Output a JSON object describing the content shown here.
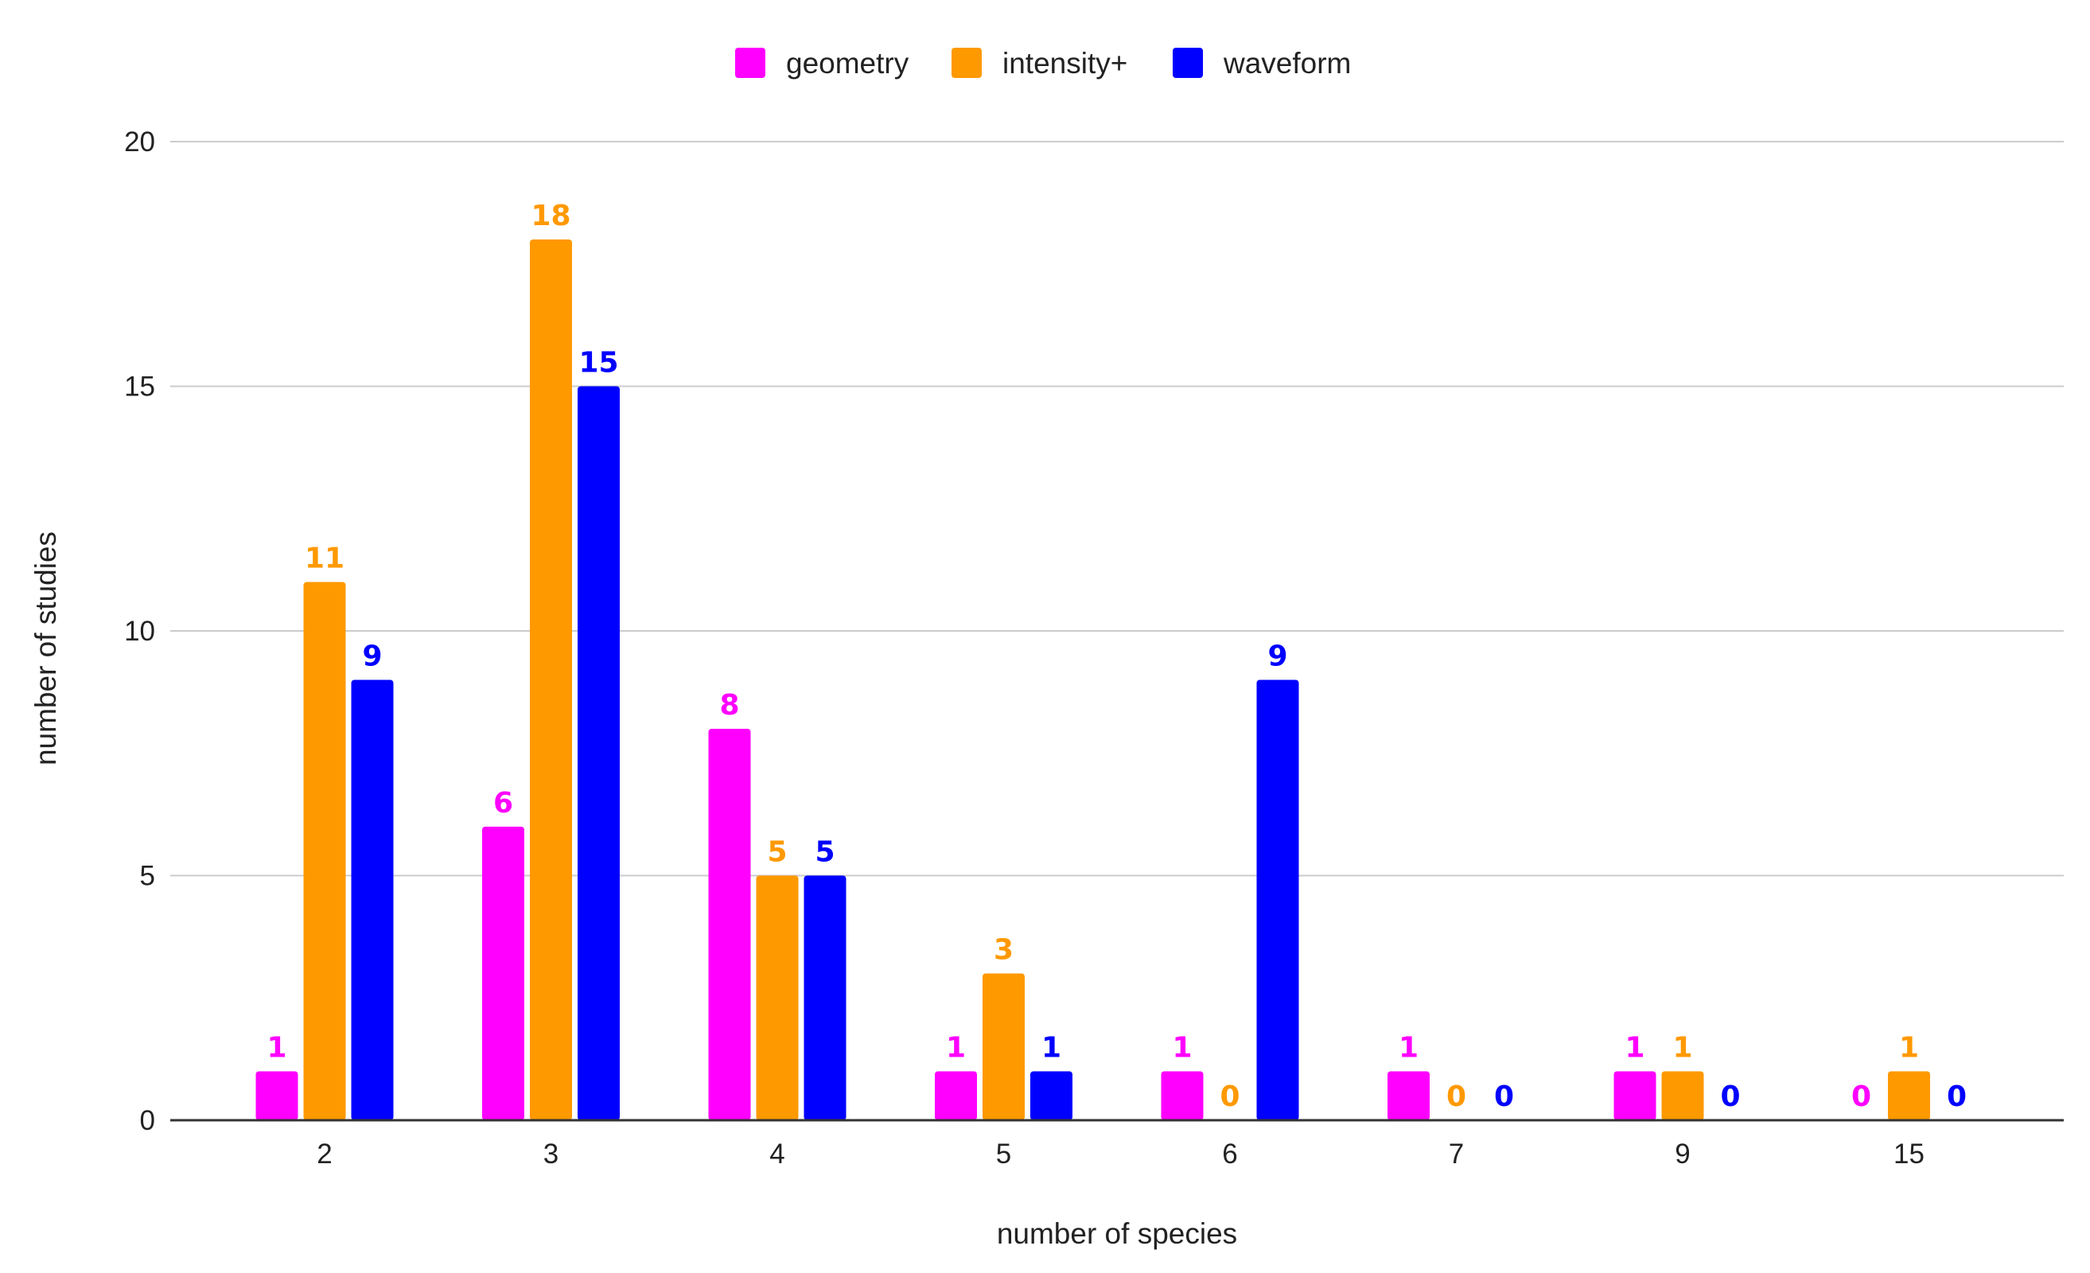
{
  "chart_data": {
    "type": "bar",
    "title": "",
    "xlabel": "number of species",
    "ylabel": "number of studies",
    "categories": [
      "2",
      "3",
      "4",
      "5",
      "6",
      "7",
      "9",
      "15"
    ],
    "ylim": [
      0,
      20
    ],
    "yticks": [
      "0",
      "5",
      "10",
      "15",
      "20"
    ],
    "ytick_values": [
      0,
      5,
      10,
      15,
      20
    ],
    "grid": true,
    "legend_position": "top-center",
    "series": [
      {
        "name": "geometry",
        "color": "#ff00ff",
        "values": [
          1,
          6,
          8,
          1,
          1,
          1,
          1,
          0
        ],
        "labels": [
          "1",
          "6",
          "8",
          "1",
          "1",
          "1",
          "1",
          "0"
        ]
      },
      {
        "name": "intensity+",
        "color": "#ff9900",
        "values": [
          11,
          18,
          5,
          3,
          0,
          0,
          1,
          1
        ],
        "labels": [
          "11",
          "18",
          "5",
          "3",
          "0",
          "0",
          "1",
          "1"
        ]
      },
      {
        "name": "waveform",
        "color": "#0000ff",
        "values": [
          9,
          15,
          5,
          1,
          9,
          0,
          0,
          0
        ],
        "labels": [
          "9",
          "15",
          "5",
          "1",
          "9",
          "0",
          "0",
          "0"
        ]
      }
    ]
  }
}
